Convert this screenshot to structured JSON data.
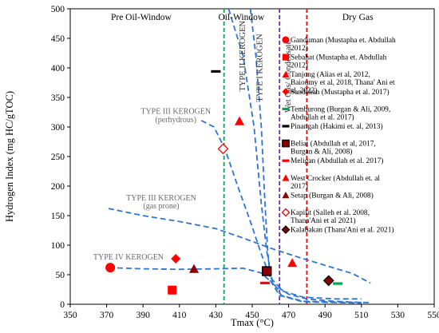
{
  "chart_data": {
    "type": "scatter",
    "title": "",
    "xlabel": "Tmax (°C)",
    "ylabel": "Hydrogen Index (mg HC/gTOC)",
    "xlim": [
      350,
      550
    ],
    "ylim": [
      0,
      500
    ],
    "xticks": [
      350,
      370,
      390,
      410,
      430,
      450,
      470,
      490,
      510,
      530,
      550
    ],
    "yticks": [
      0,
      50,
      100,
      150,
      200,
      250,
      300,
      350,
      400,
      450,
      500
    ],
    "grid": false,
    "legend_position": "right",
    "colors": {
      "red": "#ff0000",
      "dark_red": "#8b0000",
      "black": "#000000",
      "green": "#00a651",
      "purple": "#7030a0",
      "curve_blue": "#2e75d6"
    },
    "zones": [
      {
        "label": "Pre Oil-Window",
        "x": 389,
        "y": 481
      },
      {
        "label": "Oil-Window",
        "x": 444,
        "y": 481
      },
      {
        "label": "Dry Gas",
        "x": 508,
        "y": 481
      }
    ],
    "vertical_lines": [
      {
        "x": 434.5,
        "color": "#00a651"
      },
      {
        "x": 465,
        "color": "#7030a0"
      },
      {
        "x": 480,
        "color": "#ff0000"
      }
    ],
    "curve_labels": [
      {
        "text": "TYPE III KEROGEN",
        "x": 408,
        "y": 322
      },
      {
        "text": "(perhydrous)",
        "x": 408,
        "y": 308
      },
      {
        "text": "TYPE III KEROGEN",
        "x": 400,
        "y": 176
      },
      {
        "text": "(gas prone)",
        "x": 400,
        "y": 162
      },
      {
        "text": "TYPE IV KEROGEN",
        "x": 382,
        "y": 76
      }
    ],
    "rotated_labels": [
      {
        "text": "TYPE II KEROGEN",
        "x": 446,
        "y": 420
      },
      {
        "text": "TYPE I KEROGEN",
        "x": 455.5,
        "y": 400
      },
      {
        "text": "Wet Gas/ Condensate",
        "x": 471,
        "y": 385
      }
    ],
    "series": [
      {
        "name": "Ganduman (Mustapha et. Abdullah 2012)",
        "marker": "circle",
        "color": "#ff0000",
        "points": [
          [
            372,
            62
          ]
        ]
      },
      {
        "name": "Sebahat (Mustapha et. Abdullah 2012)",
        "marker": "square",
        "color": "#ff0000",
        "points": [
          [
            406,
            24
          ]
        ]
      },
      {
        "name": "Tanjong (Alias et al, 2012, Baioumy et al, 2018, Thana' Ani et al, 2022)",
        "marker": "triangle",
        "color": "#ff0000",
        "points": [
          [
            443,
            310
          ],
          [
            472,
            70
          ]
        ]
      },
      {
        "name": "Sandakan (Mustapha et al. 2017)",
        "marker": "diamond",
        "color": "#ff0000",
        "points": [
          [
            408,
            77
          ]
        ]
      },
      {
        "name": "Temburong (Burgan & Ali, 2009, Abdullah et al. 2017)",
        "marker": "dash",
        "color": "#00a651",
        "points": [
          [
            497,
            35
          ]
        ]
      },
      {
        "name": "Pinangah (Hakimi et. al, 2013)",
        "marker": "dash",
        "color": "#000000",
        "points": [
          [
            430,
            394
          ]
        ]
      },
      {
        "name": "Beliat (Abdullah et al, 2017, Burgan & Ali, 2008)",
        "marker": "square-dark",
        "color": "#8b0000",
        "points": [
          [
            458,
            56
          ]
        ]
      },
      {
        "name": "Meligan (Abdullah et al. 2017)",
        "marker": "dash",
        "color": "#ff0000",
        "points": [
          [
            457,
            36
          ]
        ]
      },
      {
        "name": "West Crocker (Abdullah et. al 2017)",
        "marker": "triangle",
        "color": "#ff0000",
        "points": []
      },
      {
        "name": "Setap (Burgan & Ali, 2008)",
        "marker": "triangle",
        "color": "#8b0000",
        "points": [
          [
            418,
            60
          ]
        ]
      },
      {
        "name": "Kapilit (Salleh et al. 2008, Thana'Ani et al 2021)",
        "marker": "diamond-open",
        "color": "#ff0000",
        "points": [
          [
            434,
            263
          ]
        ]
      },
      {
        "name": "Kalabakan (Thana'Ani et al. 2021)",
        "marker": "diamond-dark",
        "color": "#8b0000",
        "points": [
          [
            492,
            40
          ]
        ]
      }
    ],
    "curves": [
      {
        "name": "type-ii-kerogen-curve",
        "points": [
          [
            437,
            500
          ],
          [
            445,
            420
          ],
          [
            451,
            300
          ],
          [
            455,
            170
          ],
          [
            458,
            90
          ],
          [
            461,
            40
          ],
          [
            466,
            15
          ],
          [
            478,
            5
          ],
          [
            510,
            3
          ]
        ]
      },
      {
        "name": "type-i-kerogen-curve",
        "points": [
          [
            449,
            500
          ],
          [
            452,
            420
          ],
          [
            455,
            300
          ],
          [
            457,
            170
          ],
          [
            458.5,
            90
          ],
          [
            460,
            40
          ],
          [
            465,
            15
          ],
          [
            478,
            4
          ],
          [
            510,
            2
          ]
        ]
      },
      {
        "name": "type-iii-perhydrous-curve",
        "points": [
          [
            422,
            311
          ],
          [
            429,
            300
          ],
          [
            435,
            263
          ],
          [
            442,
            200
          ],
          [
            449,
            140
          ],
          [
            455,
            85
          ],
          [
            460,
            45
          ],
          [
            467,
            22
          ],
          [
            478,
            12
          ],
          [
            495,
            9
          ],
          [
            510,
            9
          ]
        ]
      },
      {
        "name": "type-iii-gas-prone-curve",
        "points": [
          [
            371,
            162
          ],
          [
            390,
            150
          ],
          [
            410,
            140
          ],
          [
            430,
            128
          ],
          [
            445,
            112
          ],
          [
            460,
            95
          ],
          [
            475,
            80
          ],
          [
            490,
            66
          ],
          [
            505,
            52
          ],
          [
            515,
            36
          ]
        ]
      },
      {
        "name": "type-iv-kerogen-curve",
        "points": [
          [
            371,
            62
          ],
          [
            390,
            60
          ],
          [
            410,
            59
          ],
          [
            430,
            60
          ],
          [
            445,
            61
          ],
          [
            455,
            53
          ],
          [
            462,
            33
          ],
          [
            470,
            17
          ],
          [
            480,
            9
          ],
          [
            495,
            5
          ],
          [
            510,
            3
          ],
          [
            515,
            3
          ]
        ]
      }
    ]
  }
}
